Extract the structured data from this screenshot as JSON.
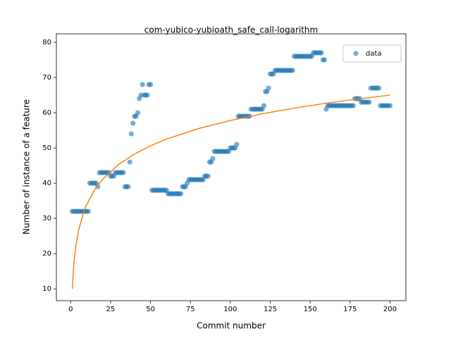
{
  "chart_data": {
    "type": "scatter",
    "title": "com-yubico-yubioath_safe_call-logarithm",
    "xlabel": "Commit number",
    "ylabel": "Number of instance of a feature",
    "xlim": [
      -8.95,
      209.95
    ],
    "ylim": [
      6.65,
      82.4
    ],
    "xticks": [
      0,
      25,
      50,
      75,
      100,
      125,
      150,
      175,
      200
    ],
    "yticks": [
      10,
      20,
      30,
      40,
      50,
      60,
      70,
      80
    ],
    "legend": "upper right",
    "series": [
      {
        "name": "data",
        "color": "#1f77b4",
        "x": [
          1,
          2,
          3,
          4,
          5,
          6,
          7,
          8,
          9,
          10,
          11,
          12,
          13,
          14,
          15,
          16,
          17,
          18,
          19,
          20,
          21,
          22,
          23,
          24,
          25,
          26,
          27,
          28,
          29,
          30,
          31,
          32,
          33,
          34,
          35,
          36,
          37,
          38,
          39,
          40,
          41,
          42,
          43,
          44,
          45,
          46,
          47,
          48,
          49,
          50,
          51,
          52,
          53,
          54,
          55,
          56,
          57,
          58,
          59,
          60,
          61,
          62,
          63,
          64,
          65,
          66,
          67,
          68,
          69,
          70,
          71,
          72,
          73,
          74,
          75,
          76,
          77,
          78,
          79,
          80,
          81,
          82,
          83,
          84,
          85,
          86,
          87,
          88,
          89,
          90,
          91,
          92,
          93,
          94,
          95,
          96,
          97,
          98,
          99,
          100,
          101,
          102,
          103,
          104,
          105,
          106,
          107,
          108,
          109,
          110,
          111,
          112,
          113,
          114,
          115,
          116,
          117,
          118,
          119,
          120,
          121,
          122,
          123,
          124,
          125,
          126,
          127,
          128,
          129,
          130,
          131,
          132,
          133,
          134,
          135,
          136,
          137,
          138,
          139,
          140,
          141,
          142,
          143,
          144,
          145,
          146,
          147,
          148,
          149,
          150,
          151,
          152,
          153,
          154,
          155,
          156,
          157,
          158,
          159,
          160,
          161,
          162,
          163,
          164,
          165,
          166,
          167,
          168,
          169,
          170,
          171,
          172,
          173,
          174,
          175,
          176,
          177,
          178,
          179,
          180,
          181,
          182,
          183,
          184,
          185,
          186,
          187,
          188,
          189,
          190,
          191,
          192,
          193,
          194,
          195,
          196,
          197,
          198,
          199,
          200
        ],
        "values": [
          32,
          32,
          32,
          32,
          32,
          32,
          32,
          32,
          32,
          32,
          32,
          40,
          40,
          40,
          40,
          40,
          39,
          43,
          43,
          43,
          43,
          43,
          43,
          43,
          42,
          42,
          42,
          43,
          43,
          43,
          43,
          43,
          43,
          39,
          39,
          39,
          46,
          54,
          57,
          59,
          59,
          60,
          64,
          65,
          68,
          65,
          65,
          65,
          68,
          68,
          38,
          38,
          38,
          38,
          38,
          38,
          38,
          38,
          38,
          38,
          37,
          37,
          37,
          37,
          37,
          37,
          37,
          37,
          37,
          39,
          39,
          39,
          40,
          41,
          41,
          41,
          41,
          41,
          41,
          41,
          41,
          41,
          41,
          42,
          42,
          42,
          46,
          46,
          47,
          49,
          49,
          49,
          49,
          49,
          49,
          49,
          49,
          49,
          49,
          50,
          50,
          50,
          50,
          51,
          59,
          59,
          59,
          59,
          59,
          59,
          59,
          59,
          61,
          61,
          61,
          61,
          61,
          61,
          61,
          61,
          62,
          66,
          66,
          67,
          71,
          71,
          71,
          72,
          72,
          72,
          72,
          72,
          72,
          72,
          72,
          72,
          72,
          72,
          72,
          76,
          76,
          76,
          76,
          76,
          76,
          76,
          76,
          76,
          76,
          76,
          76,
          77,
          77,
          77,
          77,
          77,
          77,
          75,
          75,
          61,
          62,
          62,
          62,
          62,
          62,
          62,
          62,
          62,
          62,
          62,
          62,
          62,
          62,
          62,
          62,
          62,
          62,
          64,
          64,
          64,
          64,
          63,
          63,
          63,
          63,
          63,
          63,
          67,
          67,
          67,
          67,
          67,
          67,
          62,
          62,
          62,
          62,
          62,
          62,
          62
        ]
      }
    ],
    "fit": {
      "color": "#ff7f0e",
      "x": [
        1,
        2,
        3,
        5,
        8,
        10,
        15,
        20,
        30,
        40,
        50,
        60,
        80,
        100,
        120,
        140,
        160,
        180,
        200
      ],
      "values": [
        10,
        17.2,
        21.4,
        26.7,
        31.6,
        33.9,
        38.1,
        41.1,
        45.3,
        48.3,
        50.6,
        52.5,
        55.5,
        57.8,
        59.7,
        61.3,
        62.7,
        63.9,
        65.0
      ]
    }
  }
}
